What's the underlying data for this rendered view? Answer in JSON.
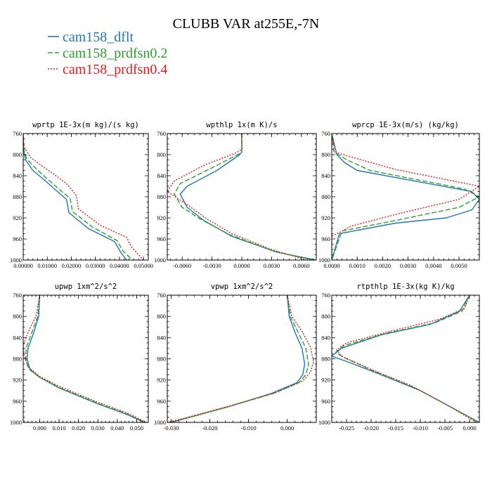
{
  "title": "CLUBB VAR at255E,-7N",
  "chart_data": {
    "type": "line",
    "y_ticks": [
      760,
      800,
      840,
      880,
      920,
      960,
      1000
    ],
    "ylim": [
      760,
      1000
    ],
    "legend": [
      {
        "name": "cam158_dflt",
        "color": "#1f77b4",
        "dash": ""
      },
      {
        "name": "cam158_prdfsn0.2",
        "color": "#2ca02c",
        "dash": "7,3"
      },
      {
        "name": "cam158_prdfsn0.4",
        "color": "#e31a1c",
        "dash": "2,2"
      }
    ],
    "panels": [
      {
        "title": "wprtp   1E-3x(m kg)/(s kg)",
        "xlim": [
          0,
          0.052
        ],
        "x_ticks": [
          {
            "v": 0,
            "label": "0.00000"
          },
          {
            "v": 0.01,
            "label": "0.01000"
          },
          {
            "v": 0.02,
            "label": "0.02000"
          },
          {
            "v": 0.03,
            "label": "0.03000"
          },
          {
            "v": 0.04,
            "label": "0.04000"
          },
          {
            "v": 0.05,
            "label": "0.05000"
          }
        ],
        "series": [
          [
            [
              0,
              760
            ],
            [
              0.0001,
              790
            ],
            [
              0.001,
              810
            ],
            [
              0.004,
              830
            ],
            [
              0.008,
              845
            ],
            [
              0.013,
              865
            ],
            [
              0.018,
              885
            ],
            [
              0.019,
              910
            ],
            [
              0.027,
              940
            ],
            [
              0.038,
              965
            ],
            [
              0.0405,
              985
            ],
            [
              0.043,
              1000
            ]
          ],
          [
            [
              0,
              760
            ],
            [
              0.0002,
              790
            ],
            [
              0.0015,
              808
            ],
            [
              0.005,
              825
            ],
            [
              0.009,
              842
            ],
            [
              0.014,
              862
            ],
            [
              0.0195,
              883
            ],
            [
              0.0205,
              908
            ],
            [
              0.029,
              938
            ],
            [
              0.039,
              963
            ],
            [
              0.0415,
              983
            ],
            [
              0.0455,
              1000
            ]
          ],
          [
            [
              0,
              760
            ],
            [
              0.0003,
              785
            ],
            [
              0.003,
              805
            ],
            [
              0.008,
              822
            ],
            [
              0.013,
              838
            ],
            [
              0.018,
              855
            ],
            [
              0.022,
              877
            ],
            [
              0.023,
              903
            ],
            [
              0.032,
              934
            ],
            [
              0.043,
              957
            ],
            [
              0.045,
              975
            ],
            [
              0.05,
              1000
            ]
          ]
        ]
      },
      {
        "title": "wpthlp  1x(m K)/s",
        "xlim": [
          -0.0075,
          0.0075
        ],
        "x_ticks": [
          {
            "v": -0.006,
            "label": "-0.0060"
          },
          {
            "v": -0.003,
            "label": "-0.0030"
          },
          {
            "v": 0,
            "label": "0.0000"
          },
          {
            "v": 0.003,
            "label": "0.0030"
          },
          {
            "v": 0.006,
            "label": "0.0060"
          }
        ],
        "series": [
          [
            [
              0,
              760
            ],
            [
              0,
              795
            ],
            [
              -0.0002,
              800
            ],
            [
              -0.0025,
              830
            ],
            [
              -0.0055,
              860
            ],
            [
              -0.0062,
              875
            ],
            [
              -0.0055,
              900
            ],
            [
              -0.0038,
              925
            ],
            [
              -0.001,
              955
            ],
            [
              0.0035,
              985
            ],
            [
              0.0075,
              1000
            ]
          ],
          [
            [
              0,
              760
            ],
            [
              0,
              795
            ],
            [
              -0.0004,
              800
            ],
            [
              -0.003,
              825
            ],
            [
              -0.0062,
              855
            ],
            [
              -0.0068,
              875
            ],
            [
              -0.006,
              900
            ],
            [
              -0.0042,
              922
            ],
            [
              -0.0012,
              952
            ],
            [
              0.0032,
              983
            ],
            [
              0.0072,
              1000
            ]
          ],
          [
            [
              0,
              760
            ],
            [
              0,
              790
            ],
            [
              -0.0006,
              797
            ],
            [
              -0.0038,
              820
            ],
            [
              -0.0068,
              850
            ],
            [
              -0.0075,
              870
            ],
            [
              -0.0055,
              895
            ],
            [
              -0.0035,
              922
            ],
            [
              -0.001,
              950
            ],
            [
              0.003,
              980
            ],
            [
              0.0065,
              1000
            ]
          ]
        ]
      },
      {
        "title": "wprcp  1E-3x(m/s) (kg/kg)",
        "xlim": [
          0,
          0.0058
        ],
        "x_ticks": [
          {
            "v": 0,
            "label": "0.0000"
          },
          {
            "v": 0.001,
            "label": "0.0010"
          },
          {
            "v": 0.002,
            "label": "0.0020"
          },
          {
            "v": 0.003,
            "label": "0.0030"
          },
          {
            "v": 0.004,
            "label": "0.0040"
          },
          {
            "v": 0.005,
            "label": "0.0050"
          }
        ],
        "series": [
          [
            [
              0,
              760
            ],
            [
              0.0002,
              800
            ],
            [
              0.0005,
              815
            ],
            [
              0.001,
              830
            ],
            [
              0.0055,
              870
            ],
            [
              0.0058,
              885
            ],
            [
              0.0055,
              905
            ],
            [
              0.0045,
              920
            ],
            [
              0.0025,
              930
            ],
            [
              0.0003,
              950
            ],
            [
              0,
              1000
            ]
          ],
          [
            [
              0,
              760
            ],
            [
              0.0001,
              795
            ],
            [
              0.0006,
              810
            ],
            [
              0.0015,
              830
            ],
            [
              0.0052,
              865
            ],
            [
              0.0058,
              880
            ],
            [
              0.005,
              900
            ],
            [
              0.0025,
              925
            ],
            [
              0.0004,
              945
            ],
            [
              0,
              1000
            ]
          ],
          [
            [
              0,
              760
            ],
            [
              0.0001,
              795
            ],
            [
              0.0008,
              805
            ],
            [
              0.0025,
              828
            ],
            [
              0.0058,
              860
            ],
            [
              0.005,
              885
            ],
            [
              0.0028,
              910
            ],
            [
              0.0008,
              935
            ],
            [
              0,
              955
            ],
            [
              0,
              1000
            ]
          ]
        ]
      },
      {
        "title": "upwp   1xm^2/s^2",
        "xlim": [
          -0.0085,
          0.056
        ],
        "x_ticks": [
          {
            "v": 0,
            "label": "0.000"
          },
          {
            "v": 0.01,
            "label": "0.010"
          },
          {
            "v": 0.02,
            "label": "0.020"
          },
          {
            "v": 0.03,
            "label": "0.030"
          },
          {
            "v": 0.04,
            "label": "0.040"
          },
          {
            "v": 0.05,
            "label": "0.050"
          }
        ],
        "series": [
          [
            [
              0,
              760
            ],
            [
              -0.0005,
              800
            ],
            [
              -0.003,
              830
            ],
            [
              -0.006,
              860
            ],
            [
              -0.0065,
              880
            ],
            [
              -0.005,
              900
            ],
            [
              0,
              915
            ],
            [
              0.01,
              935
            ],
            [
              0.03,
              965
            ],
            [
              0.045,
              985
            ],
            [
              0.054,
              1000
            ]
          ],
          [
            [
              0,
              760
            ],
            [
              -0.001,
              800
            ],
            [
              -0.004,
              830
            ],
            [
              -0.007,
              860
            ],
            [
              -0.0072,
              880
            ],
            [
              -0.0055,
              900
            ],
            [
              0,
              915
            ],
            [
              0.01,
              934
            ],
            [
              0.03,
              964
            ],
            [
              0.045,
              984
            ],
            [
              0.0545,
              1000
            ]
          ],
          [
            [
              0,
              760
            ],
            [
              -0.002,
              800
            ],
            [
              -0.006,
              830
            ],
            [
              -0.0085,
              855
            ],
            [
              -0.008,
              875
            ],
            [
              -0.006,
              895
            ],
            [
              0,
              913
            ],
            [
              0.01,
              932
            ],
            [
              0.03,
              962
            ],
            [
              0.045,
              982
            ],
            [
              0.055,
              1000
            ]
          ]
        ]
      },
      {
        "title": "vpwp   1xm^2/s^2",
        "xlim": [
          -0.031,
          0.0075
        ],
        "x_ticks": [
          {
            "v": -0.03,
            "label": "-0.030"
          },
          {
            "v": -0.02,
            "label": "-0.020"
          },
          {
            "v": -0.01,
            "label": "-0.010"
          },
          {
            "v": 0,
            "label": "0.000"
          }
        ],
        "series": [
          [
            [
              0,
              760
            ],
            [
              0.0005,
              800
            ],
            [
              0.002,
              830
            ],
            [
              0.0038,
              860
            ],
            [
              0.0045,
              890
            ],
            [
              0.004,
              910
            ],
            [
              0.0025,
              925
            ],
            [
              -0.004,
              945
            ],
            [
              -0.015,
              970
            ],
            [
              -0.025,
              990
            ],
            [
              -0.03,
              1000
            ]
          ],
          [
            [
              0,
              760
            ],
            [
              0.0008,
              800
            ],
            [
              0.0028,
              830
            ],
            [
              0.0048,
              860
            ],
            [
              0.0055,
              890
            ],
            [
              0.0048,
              910
            ],
            [
              0.003,
              925
            ],
            [
              -0.0035,
              945
            ],
            [
              -0.015,
              970
            ],
            [
              -0.025,
              990
            ],
            [
              -0.0305,
              1000
            ]
          ],
          [
            [
              0,
              760
            ],
            [
              0.0012,
              800
            ],
            [
              0.0038,
              828
            ],
            [
              0.006,
              858
            ],
            [
              0.0068,
              885
            ],
            [
              0.006,
              905
            ],
            [
              0.004,
              922
            ],
            [
              -0.003,
              944
            ],
            [
              -0.0145,
              968
            ],
            [
              -0.0245,
              988
            ],
            [
              -0.031,
              1000
            ]
          ]
        ]
      },
      {
        "title": "rtpthlp  1E-3x(kg K)/kg",
        "xlim": [
          -0.028,
          0.002
        ],
        "x_ticks": [
          {
            "v": -0.025,
            "label": "-0.025"
          },
          {
            "v": -0.02,
            "label": "-0.020"
          },
          {
            "v": -0.015,
            "label": "-0.015"
          },
          {
            "v": -0.01,
            "label": "-0.010"
          },
          {
            "v": -0.005,
            "label": "-0.005"
          },
          {
            "v": 0,
            "label": "0.000"
          }
        ],
        "series": [
          [
            [
              0,
              760
            ],
            [
              -0.002,
              790
            ],
            [
              -0.008,
              815
            ],
            [
              -0.018,
              835
            ],
            [
              -0.026,
              860
            ],
            [
              -0.028,
              875
            ],
            [
              -0.025,
              885
            ],
            [
              -0.018,
              910
            ],
            [
              -0.01,
              940
            ],
            [
              -0.003,
              975
            ],
            [
              0.002,
              1000
            ]
          ],
          [
            [
              0,
              760
            ],
            [
              -0.0015,
              790
            ],
            [
              -0.007,
              812
            ],
            [
              -0.017,
              832
            ],
            [
              -0.0255,
              855
            ],
            [
              -0.0272,
              868
            ],
            [
              -0.025,
              880
            ],
            [
              -0.019,
              905
            ],
            [
              -0.011,
              935
            ],
            [
              -0.004,
              970
            ],
            [
              0.002,
              1000
            ]
          ],
          [
            [
              0,
              760
            ],
            [
              -0.001,
              785
            ],
            [
              -0.006,
              805
            ],
            [
              -0.016,
              828
            ],
            [
              -0.025,
              850
            ],
            [
              -0.027,
              863
            ],
            [
              -0.026,
              875
            ],
            [
              -0.02,
              900
            ],
            [
              -0.012,
              930
            ],
            [
              -0.005,
              965
            ],
            [
              0.0015,
              1000
            ]
          ]
        ]
      }
    ]
  }
}
